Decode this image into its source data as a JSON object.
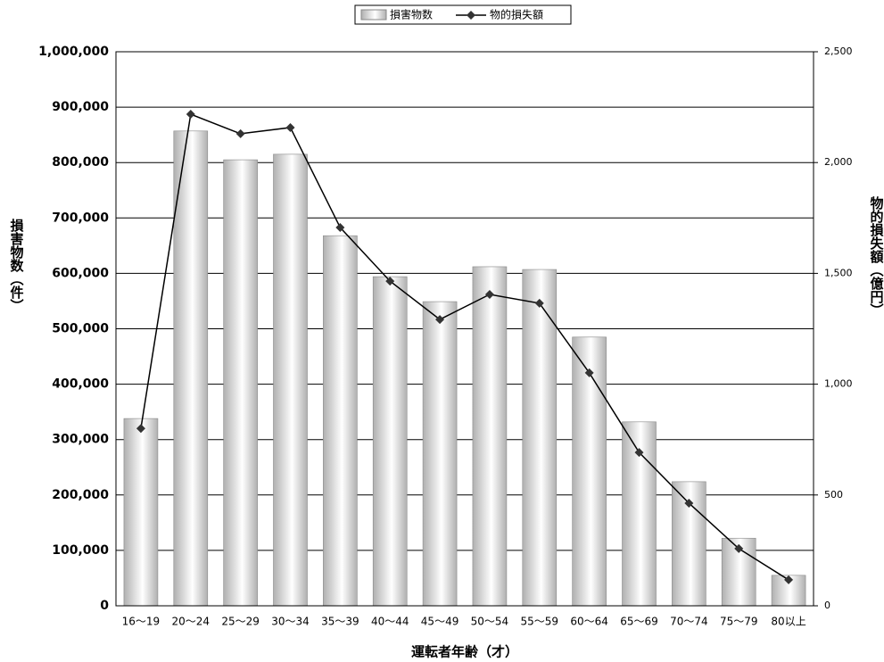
{
  "chart_data": {
    "type": "bar-line",
    "x_label": "運転者年齢（才）",
    "y_label": "損害物数（件）",
    "y2_label": "物的損失額（億円）",
    "categories": [
      "16～19",
      "20～24",
      "25～29",
      "30～34",
      "35～39",
      "40～44",
      "45～49",
      "50～54",
      "55～59",
      "60～64",
      "65～69",
      "70～74",
      "75～79",
      "80以上"
    ],
    "series": [
      {
        "name": "損害物数",
        "type": "bar",
        "color": "#b0b0b0",
        "values": [
          338000,
          857000,
          805000,
          815000,
          668000,
          594000,
          549000,
          612000,
          607000,
          485000,
          332000,
          224000,
          122000,
          55000
        ]
      },
      {
        "name": "物的損失額",
        "type": "line",
        "axis": "y2",
        "color": "#000000",
        "values": [
          800,
          2218,
          2130,
          2158,
          1707,
          1465,
          1292,
          1405,
          1365,
          1051,
          692,
          463,
          258,
          117
        ]
      }
    ],
    "ylim": [
      0,
      1000000
    ],
    "yticks": [
      0,
      {
        "value": 100000,
        "label": "100,000"
      },
      {
        "value": 200000,
        "label": "200,000"
      },
      {
        "value": 300000,
        "label": "300,000"
      },
      {
        "value": 400000,
        "label": "400,000"
      },
      {
        "value": 500000,
        "label": "500,000"
      },
      {
        "value": 600000,
        "label": "600,000"
      },
      {
        "value": 700000,
        "label": "700,000"
      },
      {
        "value": 800000,
        "label": "800,000"
      },
      {
        "value": 900000,
        "label": "900,000"
      },
      {
        "value": 1000000,
        "label": "1,000,000"
      }
    ],
    "y2lim": [
      0,
      2500
    ],
    "y2ticks": [
      0,
      500,
      {
        "value": 1000,
        "label": "1,000"
      },
      {
        "value": 1500,
        "label": "1,500"
      },
      {
        "value": 2000,
        "label": "2,000"
      },
      {
        "value": 2500,
        "label": "2,500"
      }
    ],
    "grid": true,
    "legend": "top"
  }
}
